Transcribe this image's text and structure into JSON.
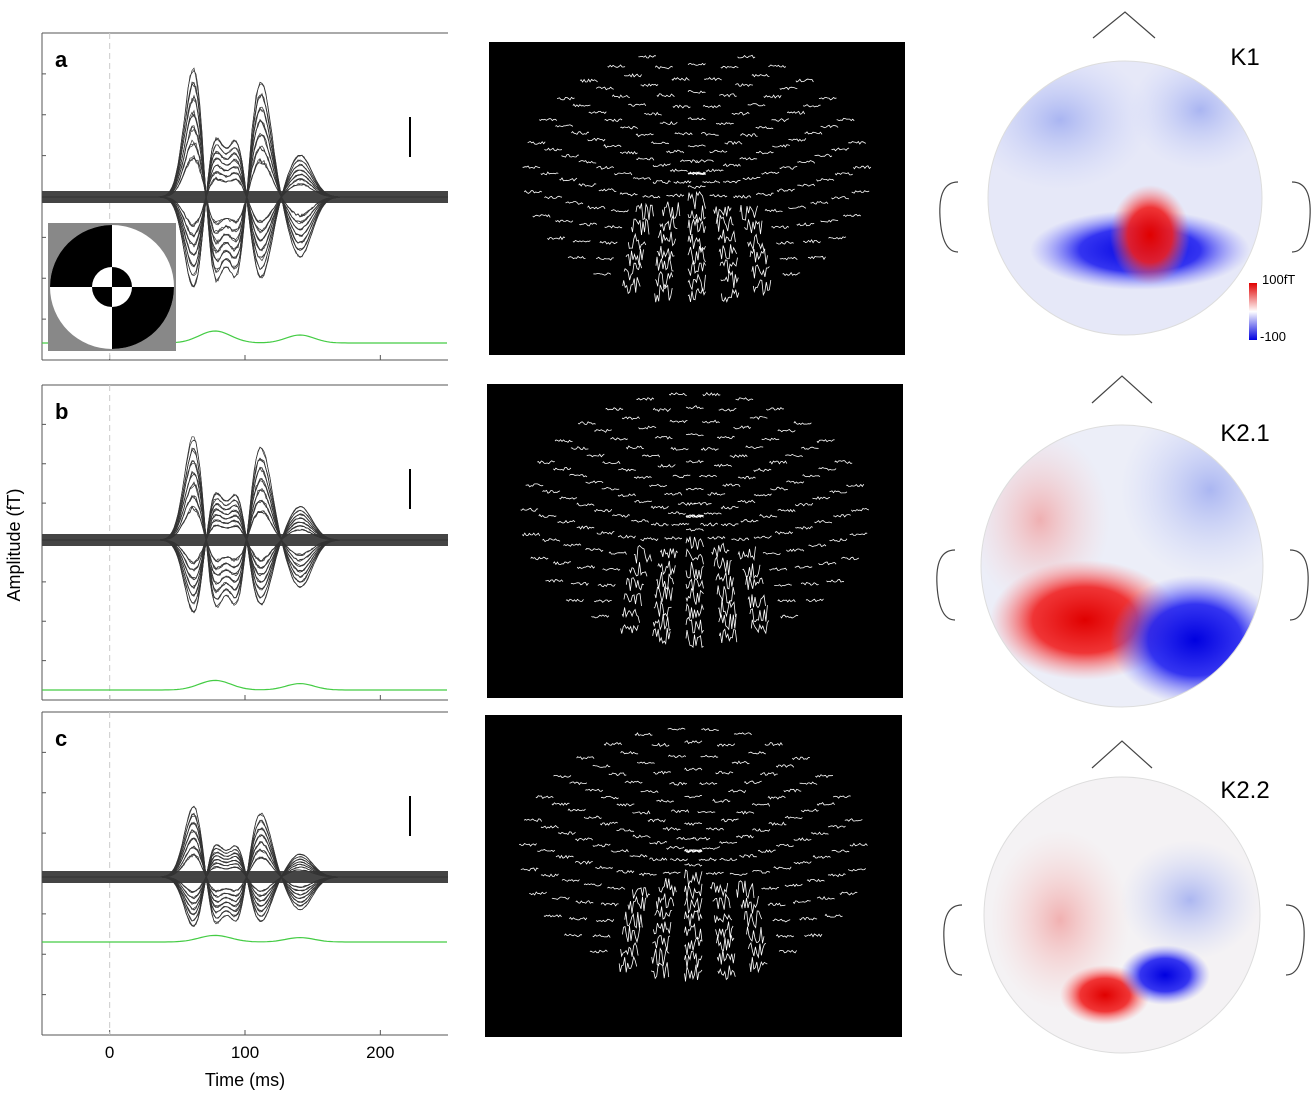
{
  "panels": [
    {
      "label": "a"
    },
    {
      "label": "b"
    },
    {
      "label": "c"
    }
  ],
  "y_label": "Amplitude (fT)",
  "x_label": "Time (ms)",
  "x_axis": {
    "xlim": [
      -50,
      250
    ],
    "xticks": [
      0,
      100,
      200
    ]
  },
  "topomaps": [
    {
      "label": "K1"
    },
    {
      "label": "K2.1"
    },
    {
      "label": "K2.2"
    }
  ],
  "colorbar": {
    "ticks": [
      {
        "value": 100,
        "label": "100fT"
      },
      {
        "value": -100,
        "label": "-100"
      }
    ]
  }
}
